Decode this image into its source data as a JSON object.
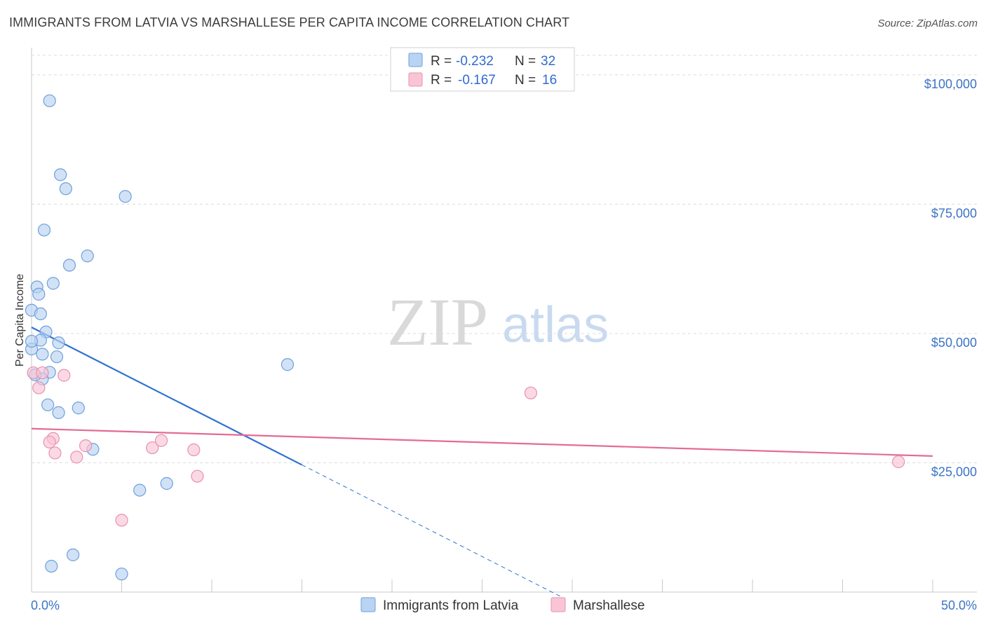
{
  "header": {
    "title": "IMMIGRANTS FROM LATVIA VS MARSHALLESE PER CAPITA INCOME CORRELATION CHART",
    "source": "Source: ZipAtlas.com"
  },
  "watermark": {
    "zip": "ZIP",
    "atlas": "atlas"
  },
  "colors": {
    "blue_fill": "#b9d3f3",
    "blue_stroke": "#6f9fda",
    "blue_line": "#2e73d0",
    "pink_fill": "#f9c5d5",
    "pink_stroke": "#e891ad",
    "pink_line": "#e36b95",
    "grid": "#dcdcdc",
    "axis_text": "#3b74c6"
  },
  "legend": {
    "rows": [
      {
        "r_label": "R = ",
        "r_value": "-0.232",
        "n_label": "N = ",
        "n_value": "32"
      },
      {
        "r_label": "R = ",
        "r_value": "-0.167",
        "n_label": "N = ",
        "n_value": "16"
      }
    ]
  },
  "chart_data": {
    "type": "scatter",
    "title": "IMMIGRANTS FROM LATVIA VS MARSHALLESE PER CAPITA INCOME CORRELATION CHART",
    "xlabel": "",
    "ylabel": "Per Capita Income",
    "xlim": [
      0,
      50
    ],
    "ylim": [
      0,
      105000
    ],
    "x_tick_labels": [
      "0.0%",
      "50.0%"
    ],
    "y_ticks": [
      {
        "value": 25000,
        "label": "$25,000"
      },
      {
        "value": 50000,
        "label": "$50,000"
      },
      {
        "value": 75000,
        "label": "$75,000"
      },
      {
        "value": 100000,
        "label": "$100,000"
      }
    ],
    "grid": true,
    "legend_position": "top-center",
    "series": [
      {
        "name": "Immigrants from Latvia",
        "color": "#b9d3f3",
        "points": [
          [
            1.0,
            95000
          ],
          [
            1.6,
            80700
          ],
          [
            1.9,
            78000
          ],
          [
            5.2,
            76500
          ],
          [
            0.7,
            70000
          ],
          [
            3.1,
            65000
          ],
          [
            2.1,
            63200
          ],
          [
            1.2,
            59700
          ],
          [
            0.3,
            59000
          ],
          [
            0.4,
            57600
          ],
          [
            0.0,
            54500
          ],
          [
            0.5,
            53800
          ],
          [
            0.8,
            50300
          ],
          [
            0.5,
            48700
          ],
          [
            1.5,
            48200
          ],
          [
            0.0,
            47000
          ],
          [
            0.6,
            46000
          ],
          [
            1.4,
            45500
          ],
          [
            1.0,
            42500
          ],
          [
            0.6,
            41200
          ],
          [
            14.2,
            44000
          ],
          [
            0.9,
            36200
          ],
          [
            1.5,
            34700
          ],
          [
            2.6,
            35600
          ],
          [
            3.4,
            27600
          ],
          [
            6.0,
            19700
          ],
          [
            7.5,
            21000
          ],
          [
            1.1,
            5000
          ],
          [
            2.3,
            7200
          ],
          [
            5.0,
            3500
          ],
          [
            0.2,
            42000
          ],
          [
            0.0,
            48500
          ]
        ],
        "trend": {
          "x0": 0,
          "y0": 51200,
          "x1": 15,
          "y1": 24600,
          "dashed_to_x": 29.5
        }
      },
      {
        "name": "Marshallese",
        "color": "#f9c5d5",
        "points": [
          [
            0.1,
            42400
          ],
          [
            0.6,
            42400
          ],
          [
            0.4,
            39500
          ],
          [
            1.8,
            41900
          ],
          [
            1.2,
            29700
          ],
          [
            1.0,
            29000
          ],
          [
            1.3,
            26900
          ],
          [
            3.0,
            28300
          ],
          [
            2.5,
            26100
          ],
          [
            6.7,
            27900
          ],
          [
            7.2,
            29300
          ],
          [
            9.0,
            27500
          ],
          [
            9.2,
            22400
          ],
          [
            5.0,
            13900
          ],
          [
            27.7,
            38500
          ],
          [
            48.1,
            25200
          ]
        ],
        "trend": {
          "x0": 0,
          "y0": 31600,
          "x1": 50,
          "y1": 26300
        }
      }
    ]
  }
}
